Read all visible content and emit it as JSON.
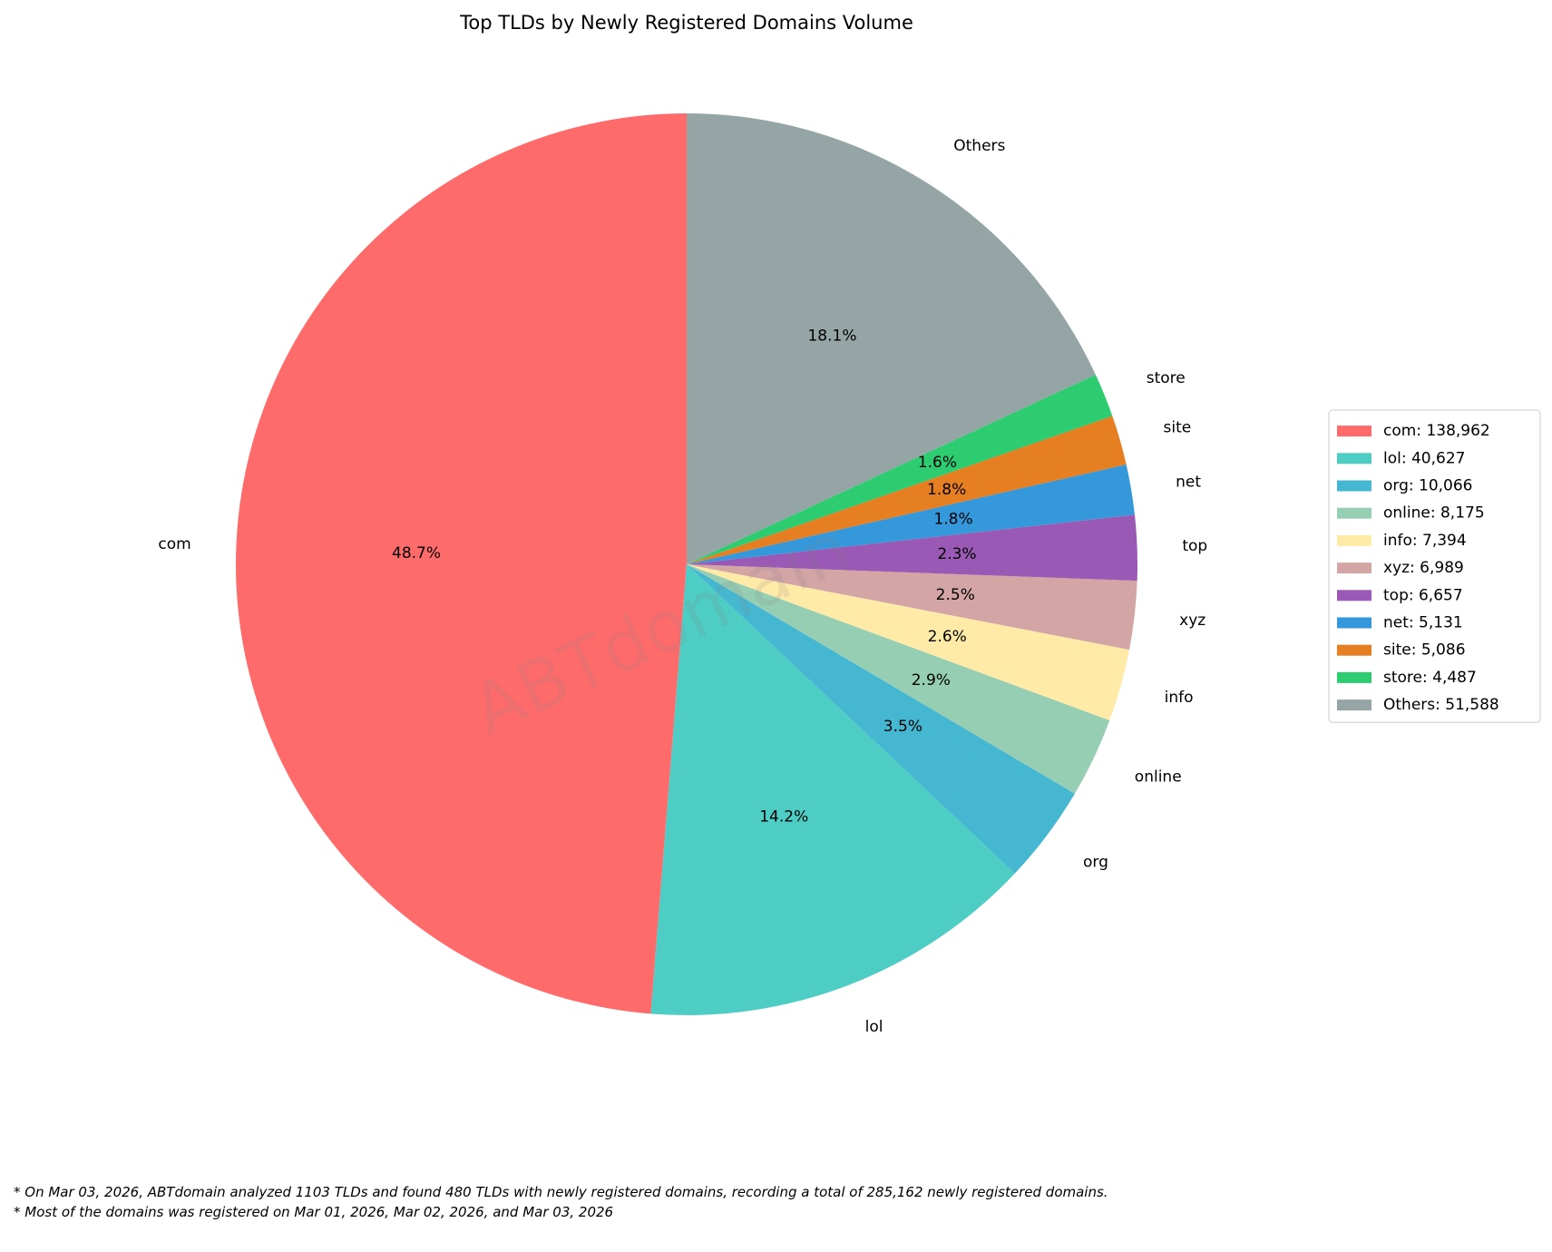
{
  "chart_data": {
    "type": "pie",
    "title": "Top TLDs by Newly Registered Domains Volume",
    "categories": [
      "com",
      "lol",
      "org",
      "online",
      "info",
      "xyz",
      "top",
      "net",
      "site",
      "store",
      "Others"
    ],
    "values": [
      138962,
      40627,
      10066,
      8175,
      7394,
      6989,
      6657,
      5131,
      5086,
      4487,
      51588
    ],
    "pct_labels": [
      "48.7%",
      "14.2%",
      "3.5%",
      "2.9%",
      "2.6%",
      "2.5%",
      "2.3%",
      "1.8%",
      "1.8%",
      "1.6%",
      "18.1%"
    ],
    "legend_labels": [
      "com: 138,962",
      "lol: 40,627",
      "org: 10,066",
      "online: 8,175",
      "info: 7,394",
      "xyz: 6,989",
      "top: 6,657",
      "net: 5,131",
      "site: 5,086",
      "store: 4,487",
      "Others: 51,588"
    ],
    "colors": [
      "#ff6b6b",
      "#4ecdc4",
      "#45b7d1",
      "#96ceb4",
      "#ffeaa7",
      "#d4a5a5",
      "#9b59b6",
      "#3498db",
      "#e67e22",
      "#2ecc71",
      "#95a5a6"
    ],
    "legend": "right",
    "watermark": "ABTdomain",
    "footnotes": [
      "* On Mar 03, 2026, ABTdomain analyzed 1103 TLDs and found 480 TLDs with newly registered domains, recording a total of 285,162 newly registered domains.",
      "* Most of the domains was registered on Mar 01, 2026, Mar 02, 2026, and Mar 03, 2026"
    ]
  }
}
